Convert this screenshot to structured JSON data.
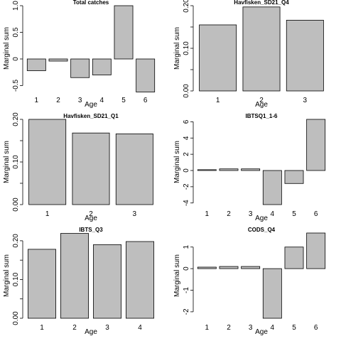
{
  "chart_data": [
    {
      "type": "bar",
      "title": "Total catches",
      "xlabel": "Age",
      "ylabel": "Marginal sum",
      "categories": [
        "1",
        "2",
        "3",
        "4",
        "5",
        "6"
      ],
      "values": [
        -0.22,
        -0.04,
        -0.35,
        -0.3,
        1.0,
        -0.62
      ],
      "ylim": [
        -0.6,
        1.0
      ],
      "yticks": [
        -0.5,
        0,
        0.5,
        1
      ],
      "yticklabels": [
        "-0.5",
        "0",
        "0.5",
        "1.0"
      ]
    },
    {
      "type": "bar",
      "title": "Havfisken_SD21_Q4",
      "xlabel": "Age",
      "ylabel": "Marginal sum",
      "categories": [
        "1",
        "2",
        "3"
      ],
      "values": [
        0.155,
        0.197,
        0.166
      ],
      "ylim": [
        0,
        0.2
      ],
      "yticks": [
        0,
        0.05,
        0.1,
        0.15,
        0.2
      ],
      "yticklabels": [
        "0.00",
        "",
        "0.10",
        "",
        "0.20"
      ]
    },
    {
      "type": "bar",
      "title": "Havfisken_SD21_Q1",
      "xlabel": "Age",
      "ylabel": "Marginal sum",
      "categories": [
        "1",
        "2",
        "3"
      ],
      "values": [
        0.2,
        0.168,
        0.166
      ],
      "ylim": [
        0,
        0.2
      ],
      "yticks": [
        0,
        0.05,
        0.1,
        0.15,
        0.2
      ],
      "yticklabels": [
        "0.00",
        "",
        "0.10",
        "",
        "0.20"
      ]
    },
    {
      "type": "bar",
      "title": "IBTSQ1_1-6",
      "xlabel": "Age",
      "ylabel": "Marginal sum",
      "categories": [
        "1",
        "2",
        "3",
        "4",
        "5",
        "6"
      ],
      "values": [
        0.1,
        0.2,
        0.2,
        -4.2,
        -1.6,
        6.3
      ],
      "ylim": [
        -4.2,
        6.3
      ],
      "yticks": [
        -4,
        -2,
        0,
        2,
        4,
        6
      ],
      "yticklabels": [
        "-4",
        "-2",
        "0",
        "2",
        "4",
        "6"
      ]
    },
    {
      "type": "bar",
      "title": "IBTS_Q3",
      "xlabel": "Age",
      "ylabel": "Marginal sum",
      "categories": [
        "1",
        "2",
        "3",
        "4"
      ],
      "values": [
        0.178,
        0.219,
        0.19,
        0.198
      ],
      "ylim": [
        0,
        0.22
      ],
      "yticks": [
        0,
        0.05,
        0.1,
        0.15,
        0.2
      ],
      "yticklabels": [
        "0.00",
        "",
        "0.10",
        "",
        "0.20"
      ]
    },
    {
      "type": "bar",
      "title": "CODS_Q4",
      "xlabel": "Age",
      "ylabel": "Marginal sum",
      "categories": [
        "1",
        "2",
        "3",
        "4",
        "5",
        "6"
      ],
      "values": [
        0.07,
        0.1,
        0.1,
        -2.3,
        1.0,
        1.65
      ],
      "ylim": [
        -2.3,
        1.65
      ],
      "yticks": [
        -2,
        -1,
        0,
        1
      ],
      "yticklabels": [
        "-2",
        "-1",
        "0",
        "1"
      ]
    }
  ]
}
